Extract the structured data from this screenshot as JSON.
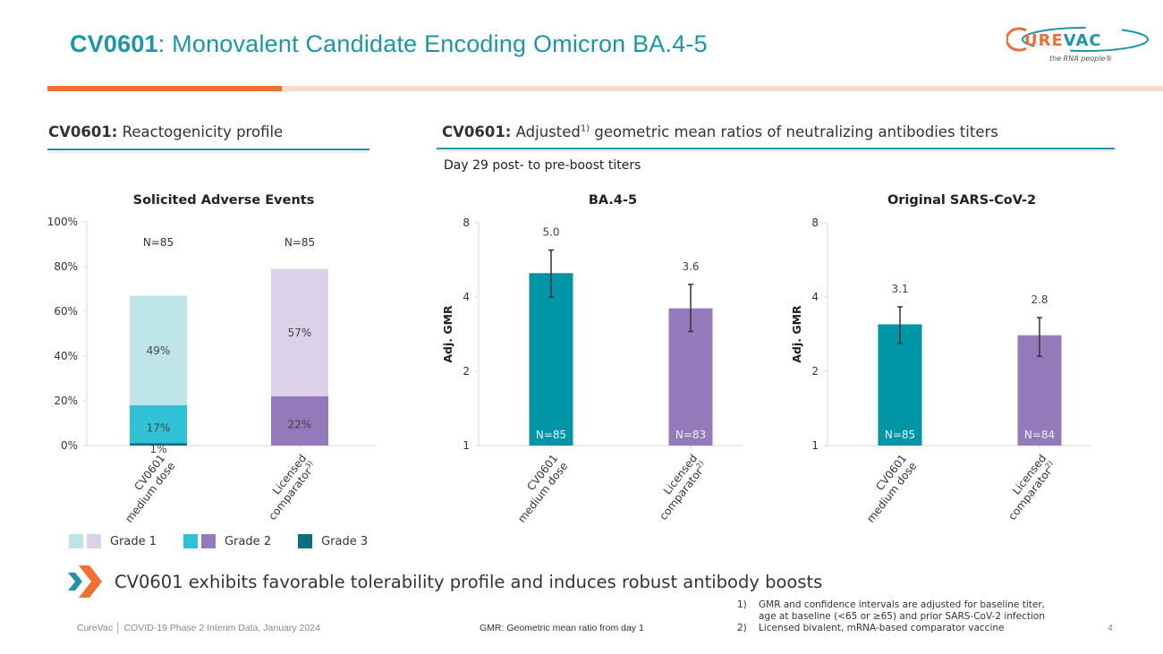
{
  "header": {
    "title_bold": "CV0601",
    "title_rest": ": Monovalent Candidate Encoding Omicron BA.4-5",
    "logo_text": "CUREVAC",
    "logo_tagline": "the RNA people®"
  },
  "left_section": {
    "heading_bold": "CV0601:",
    "heading_rest": " Reactogenicity profile"
  },
  "right_section": {
    "heading_bold": "CV0601:",
    "heading_rest_1": " Adjusted",
    "heading_sup": "1)",
    "heading_rest_2": " geometric mean ratios of neutralizing antibodies titers",
    "subtitle": "Day 29 post- to pre-boost titers"
  },
  "legend": {
    "items": [
      {
        "label": "Grade 1",
        "colors": [
          "#bde5e8",
          "#dbd1e8"
        ]
      },
      {
        "label": "Grade 2",
        "colors": [
          "#2fc2d6",
          "#9479bb"
        ]
      },
      {
        "label": "Grade 3",
        "colors": [
          "#0d6e80"
        ]
      }
    ]
  },
  "conclusion": "CV0601 exhibits favorable tolerability profile and induces robust antibody boosts",
  "footer": {
    "source": "CureVac │ COVID-19 Phase 2 Interim Data, January 2024",
    "gmr_note": "GMR: Geometric mean ratio from day 1",
    "page_number": "4",
    "footnotes": [
      {
        "num": "1)",
        "text": "GMR and confidence intervals are adjusted for baseline titer,",
        "text2": "age at baseline (<65 or ≥65) and prior SARS-CoV-2 infection"
      },
      {
        "num": "2)",
        "text": "Licensed bivalent, mRNA-based comparator vaccine",
        "text2": ""
      }
    ]
  },
  "colors": {
    "teal": "#0096a8",
    "purple": "#9479bb",
    "accent_orange": "#ef7030",
    "title_teal": "#1e95a6"
  },
  "chart_data": [
    {
      "type": "bar",
      "stacked": true,
      "title": "Solicited Adverse Events",
      "xlabel": "",
      "ylabel": "",
      "ylim": [
        0,
        100
      ],
      "yticks": [
        "0%",
        "20%",
        "40%",
        "60%",
        "80%",
        "100%"
      ],
      "categories": [
        {
          "line1": "CV0601",
          "line2": "medium dose",
          "sup": "",
          "n": "N=85"
        },
        {
          "line1": "Licensed",
          "line2": "comparator",
          "sup": "3)",
          "n": "N=85"
        }
      ],
      "series": [
        {
          "name": "Grade 3",
          "values": [
            1,
            0
          ],
          "labels": [
            "1%",
            ""
          ],
          "colors": [
            "#0d6e80",
            "#0d6e80"
          ]
        },
        {
          "name": "Grade 2",
          "values": [
            17,
            22
          ],
          "labels": [
            "17%",
            "22%"
          ],
          "colors": [
            "#2fc2d6",
            "#9479bb"
          ]
        },
        {
          "name": "Grade 1",
          "values": [
            49,
            57
          ],
          "labels": [
            "49%",
            "57%"
          ],
          "colors": [
            "#bde5e8",
            "#dbd1e8"
          ]
        }
      ],
      "grid": false
    },
    {
      "type": "bar",
      "title": "BA.4-5",
      "ylabel": "Adj. GMR",
      "yscale": "log2",
      "ylim": [
        1,
        8
      ],
      "yticks": [
        "1",
        "2",
        "4",
        "8"
      ],
      "categories": [
        {
          "line1": "CV0601",
          "line2": "medium dose",
          "sup": ""
        },
        {
          "line1": "Licensed",
          "line2": "comparator",
          "sup": "2)"
        }
      ],
      "values": [
        5.0,
        3.6
      ],
      "value_labels": [
        "5.0",
        "3.6"
      ],
      "ci_lower": [
        4.0,
        2.9
      ],
      "ci_upper": [
        6.2,
        4.5
      ],
      "n_labels": [
        "N=85",
        "N=83"
      ],
      "colors": [
        "#0096a8",
        "#9479bb"
      ],
      "grid": false
    },
    {
      "type": "bar",
      "title": "Original SARS-CoV-2",
      "ylabel": "Adj. GMR",
      "yscale": "log2",
      "ylim": [
        1,
        8
      ],
      "yticks": [
        "1",
        "2",
        "4",
        "8"
      ],
      "categories": [
        {
          "line1": "CV0601",
          "line2": "medium dose",
          "sup": ""
        },
        {
          "line1": "Licensed",
          "line2": "comparator",
          "sup": "2)"
        }
      ],
      "values": [
        3.1,
        2.8
      ],
      "value_labels": [
        "3.1",
        "2.8"
      ],
      "ci_lower": [
        2.6,
        2.3
      ],
      "ci_upper": [
        3.65,
        3.3
      ],
      "n_labels": [
        "N=85",
        "N=84"
      ],
      "colors": [
        "#0096a8",
        "#9479bb"
      ],
      "grid": false
    }
  ]
}
